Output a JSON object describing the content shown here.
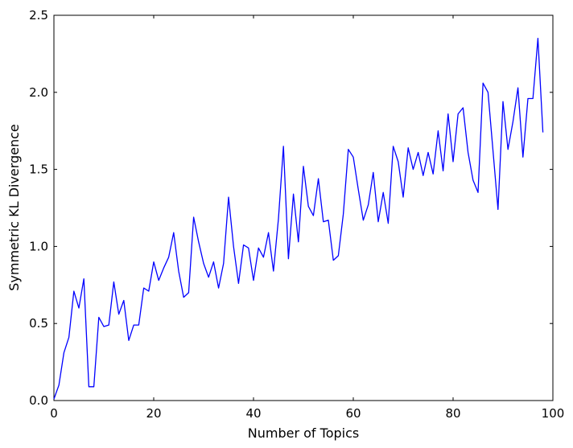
{
  "chart_data": {
    "type": "line",
    "title": "",
    "xlabel": "Number of Topics",
    "ylabel": "Symmetric KL Divergence",
    "xlim": [
      0,
      100
    ],
    "ylim": [
      0,
      2.5
    ],
    "xticks": [
      0,
      20,
      40,
      60,
      80,
      100
    ],
    "yticks": [
      0.0,
      0.5,
      1.0,
      1.5,
      2.0,
      2.5
    ],
    "xtick_labels": [
      "0",
      "20",
      "40",
      "60",
      "80",
      "100"
    ],
    "ytick_labels": [
      "0.0",
      "0.5",
      "1.0",
      "1.5",
      "2.0",
      "2.5"
    ],
    "grid": false,
    "series": [
      {
        "color": "#0000ff",
        "x": [
          0,
          1,
          2,
          3,
          4,
          5,
          6,
          7,
          8,
          9,
          10,
          11,
          12,
          13,
          14,
          15,
          16,
          17,
          18,
          19,
          20,
          21,
          22,
          23,
          24,
          25,
          26,
          27,
          28,
          29,
          30,
          31,
          32,
          33,
          34,
          35,
          36,
          37,
          38,
          39,
          40,
          41,
          42,
          43,
          44,
          45,
          46,
          47,
          48,
          49,
          50,
          51,
          52,
          53,
          54,
          55,
          56,
          57,
          58,
          59,
          60,
          61,
          62,
          63,
          64,
          65,
          66,
          67,
          68,
          69,
          70,
          71,
          72,
          73,
          74,
          75,
          76,
          77,
          78,
          79,
          80,
          81,
          82,
          83,
          84,
          85,
          86,
          87,
          88,
          89,
          90,
          91,
          92,
          93,
          94,
          95,
          96,
          97,
          98
        ],
        "y": [
          0.01,
          0.1,
          0.31,
          0.41,
          0.71,
          0.6,
          0.79,
          0.09,
          0.09,
          0.54,
          0.48,
          0.49,
          0.77,
          0.56,
          0.65,
          0.39,
          0.49,
          0.49,
          0.73,
          0.71,
          0.9,
          0.78,
          0.86,
          0.93,
          1.09,
          0.84,
          0.67,
          0.7,
          1.19,
          1.03,
          0.89,
          0.8,
          0.9,
          0.73,
          0.89,
          1.32,
          1.0,
          0.76,
          1.01,
          0.99,
          0.78,
          0.99,
          0.93,
          1.09,
          0.84,
          1.18,
          1.65,
          0.92,
          1.34,
          1.03,
          1.52,
          1.26,
          1.2,
          1.44,
          1.16,
          1.17,
          0.91,
          0.94,
          1.21,
          1.63,
          1.58,
          1.37,
          1.17,
          1.27,
          1.48,
          1.16,
          1.35,
          1.15,
          1.65,
          1.55,
          1.32,
          1.64,
          1.5,
          1.61,
          1.46,
          1.61,
          1.47,
          1.75,
          1.49,
          1.86,
          1.55,
          1.86,
          1.9,
          1.61,
          1.43,
          1.35,
          2.06,
          2.0,
          1.62,
          1.24,
          1.94,
          1.63,
          1.81,
          2.03,
          1.58,
          1.96,
          1.96,
          2.35,
          1.74
        ]
      }
    ]
  }
}
